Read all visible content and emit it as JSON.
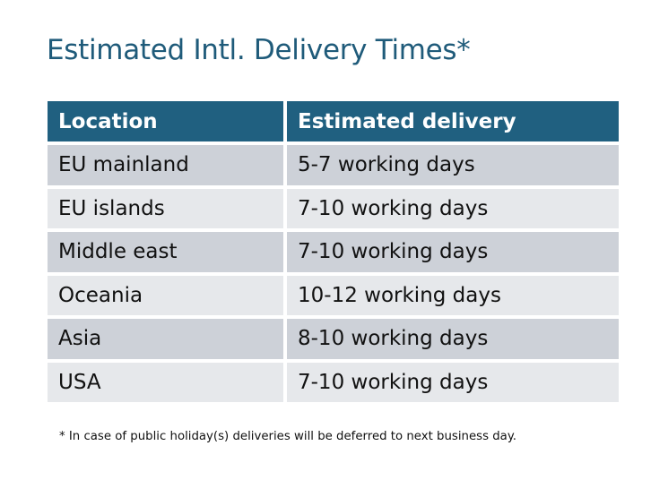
{
  "title": "Estimated Intl. Delivery Times*",
  "table": {
    "headers": [
      "Location",
      "Estimated delivery"
    ],
    "rows": [
      [
        "EU mainland",
        "5-7 working days"
      ],
      [
        "EU islands",
        "7-10 working days"
      ],
      [
        "Middle east",
        "7-10 working days"
      ],
      [
        "Oceania",
        "10-12 working days"
      ],
      [
        "Asia",
        "8-10 working days"
      ],
      [
        "USA",
        "7-10 working days"
      ]
    ]
  },
  "footnote": "* In case of public holiday(s) deliveries will be deferred to next business day.",
  "colors": {
    "title": "#1f5b7a",
    "header_bg": "#206080",
    "row_odd": "#cdd1d8",
    "row_even": "#e6e8eb"
  }
}
